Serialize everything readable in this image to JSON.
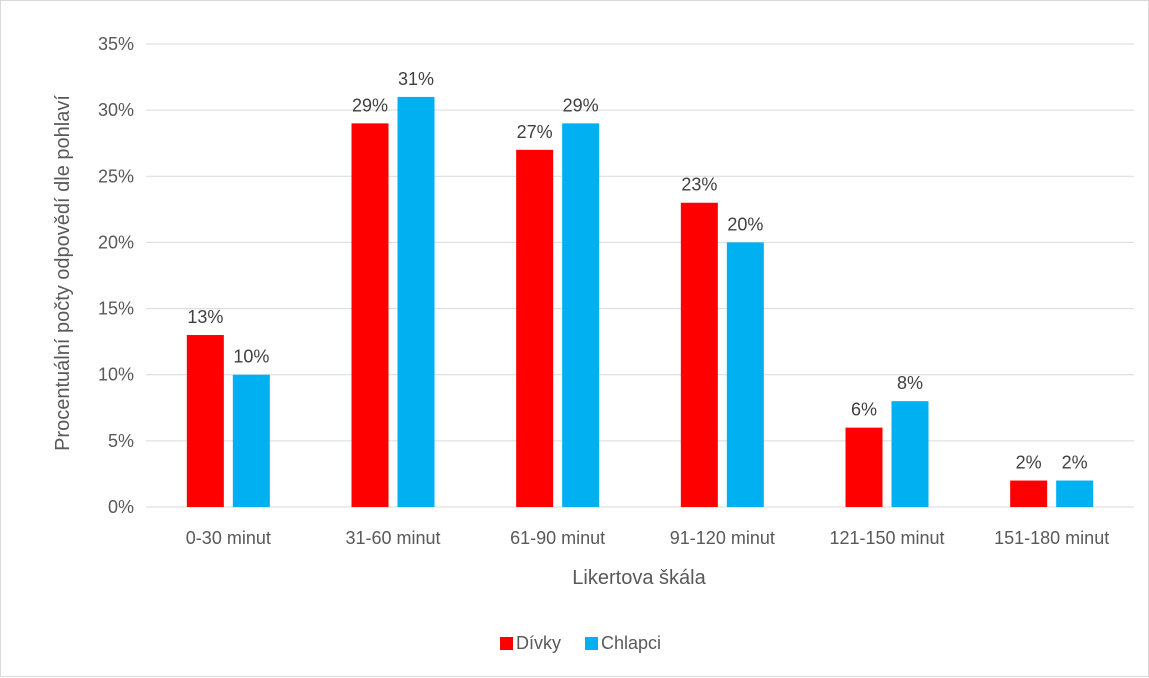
{
  "chart_data": {
    "type": "bar",
    "title": "",
    "xlabel": "Likertova škála",
    "ylabel": "Procentuální počty odpovědí dle pohlaví",
    "categories": [
      "0-30 minut",
      "31-60 minut",
      "61-90 minut",
      "91-120 minut",
      "121-150 minut",
      "151-180 minut"
    ],
    "series": [
      {
        "name": "Dívky",
        "color": "#ff0000",
        "values": [
          13,
          29,
          27,
          23,
          6,
          2
        ]
      },
      {
        "name": "Chlapci",
        "color": "#00b0f0",
        "values": [
          10,
          31,
          29,
          20,
          8,
          2
        ]
      }
    ],
    "ylim": [
      0,
      35
    ],
    "y_ticks": [
      0,
      5,
      10,
      15,
      20,
      25,
      30,
      35
    ],
    "value_suffix": "%",
    "grid": true,
    "legend": "bottom-center"
  }
}
